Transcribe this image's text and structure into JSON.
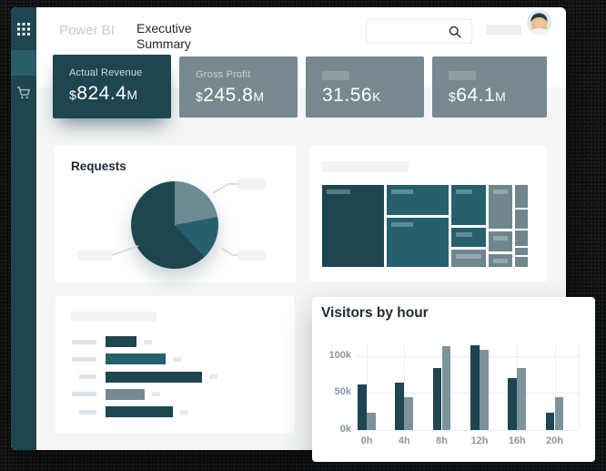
{
  "theme": {
    "dark": "#1d4650",
    "medium": "#26606c",
    "grayteal": "#75898f",
    "grayteal_dark": "#6f868d",
    "bar_gray": "#7d939b",
    "active": "#2a5d68",
    "bg": "#f4f6f6",
    "placeholder": "#f1f3f4",
    "axis": "#8b96a1",
    "title": "#1d262d",
    "brand": "#c6cccf"
  },
  "header": {
    "brand": "Power BI",
    "title": "Executive Summary",
    "search_value": ""
  },
  "kpi_cards": [
    {
      "label": "Actual Revenue",
      "prefix": "$",
      "amount": "824.4",
      "suffix": "M",
      "variant": "dark",
      "label_placeholder": false
    },
    {
      "label": "Gross Profit",
      "prefix": "$",
      "amount": "245.8",
      "suffix": "M",
      "variant": "gray",
      "label_placeholder": false
    },
    {
      "label": "",
      "prefix": "",
      "amount": "31.56",
      "suffix": "K",
      "variant": "gray",
      "label_placeholder": true
    },
    {
      "label": "",
      "prefix": "$",
      "amount": "64.1",
      "suffix": "M",
      "variant": "gray",
      "label_placeholder": true
    }
  ],
  "requests": {
    "title": "Requests"
  },
  "visitors": {
    "title": "Visitors by hour"
  },
  "chart_data": [
    {
      "type": "pie",
      "name": "requests-share",
      "title": "Requests",
      "values": [
        22,
        16,
        62
      ],
      "colors": [
        "#6d8a92",
        "#26606c",
        "#1d4650"
      ],
      "labels": [
        "",
        "",
        ""
      ],
      "legend_position": "callout-placeholders"
    },
    {
      "type": "heatmap",
      "name": "category-treemap",
      "subtype": "treemap",
      "title": "",
      "columns": [
        {
          "w": 68,
          "cells": [
            {
              "h": 90,
              "tone": "dark",
              "label_bar": 26
            }
          ]
        },
        {
          "w": 68,
          "cells": [
            {
              "h": 33,
              "tone": "medium",
              "label_bar": 24
            },
            {
              "h": 54,
              "tone": "medium",
              "label_bar": 24
            }
          ]
        },
        {
          "w": 38,
          "cells": [
            {
              "h": 44,
              "tone": "medium",
              "label_bar": 18
            },
            {
              "h": 21,
              "tone": "medium",
              "label_bar": 18
            },
            {
              "h": 19,
              "tone": "gray",
              "label_bar": 28
            }
          ]
        },
        {
          "w": 26,
          "cells": [
            {
              "h": 48,
              "tone": "gray",
              "label_bar": 16
            },
            {
              "h": 22,
              "tone": "gray",
              "label_bar": 16
            },
            {
              "h": 14,
              "tone": "gray",
              "label_bar": 16
            }
          ]
        },
        {
          "w": 14,
          "cells": [
            {
              "h": 25,
              "tone": "gray",
              "label_bar": 0
            },
            {
              "h": 21,
              "tone": "gray",
              "label_bar": 0
            },
            {
              "h": 17,
              "tone": "gray",
              "label_bar": 0
            },
            {
              "h": 8,
              "tone": "gray",
              "label_bar": 0
            },
            {
              "h": 11,
              "tone": "gray",
              "label_bar": 0
            }
          ]
        }
      ]
    },
    {
      "type": "bar",
      "name": "top-items",
      "orientation": "horizontal",
      "title": "",
      "values": [
        34,
        66,
        106,
        43,
        74
      ],
      "tones": [
        "dark",
        "medium",
        "dark",
        "gray",
        "dark"
      ],
      "label_widths": [
        27,
        27,
        19,
        27,
        19
      ]
    },
    {
      "type": "bar",
      "name": "visitors-by-hour",
      "title": "Visitors by hour",
      "categories": [
        "0h",
        "4h",
        "8h",
        "12h",
        "16h",
        "20h"
      ],
      "series": [
        {
          "name": "series-1",
          "color": "#1d4650",
          "values": [
            61,
            64,
            84,
            114,
            70,
            23
          ]
        },
        {
          "name": "series-2",
          "color": "#7d939b",
          "values": [
            23,
            44,
            113,
            108,
            84,
            44
          ]
        }
      ],
      "unit": "k",
      "yticks": [
        {
          "label": "0k",
          "value": 0
        },
        {
          "label": "50k",
          "value": 50
        },
        {
          "label": "100k",
          "value": 100
        }
      ],
      "ylim": [
        0,
        120
      ],
      "grid": true,
      "legend": "none"
    }
  ]
}
